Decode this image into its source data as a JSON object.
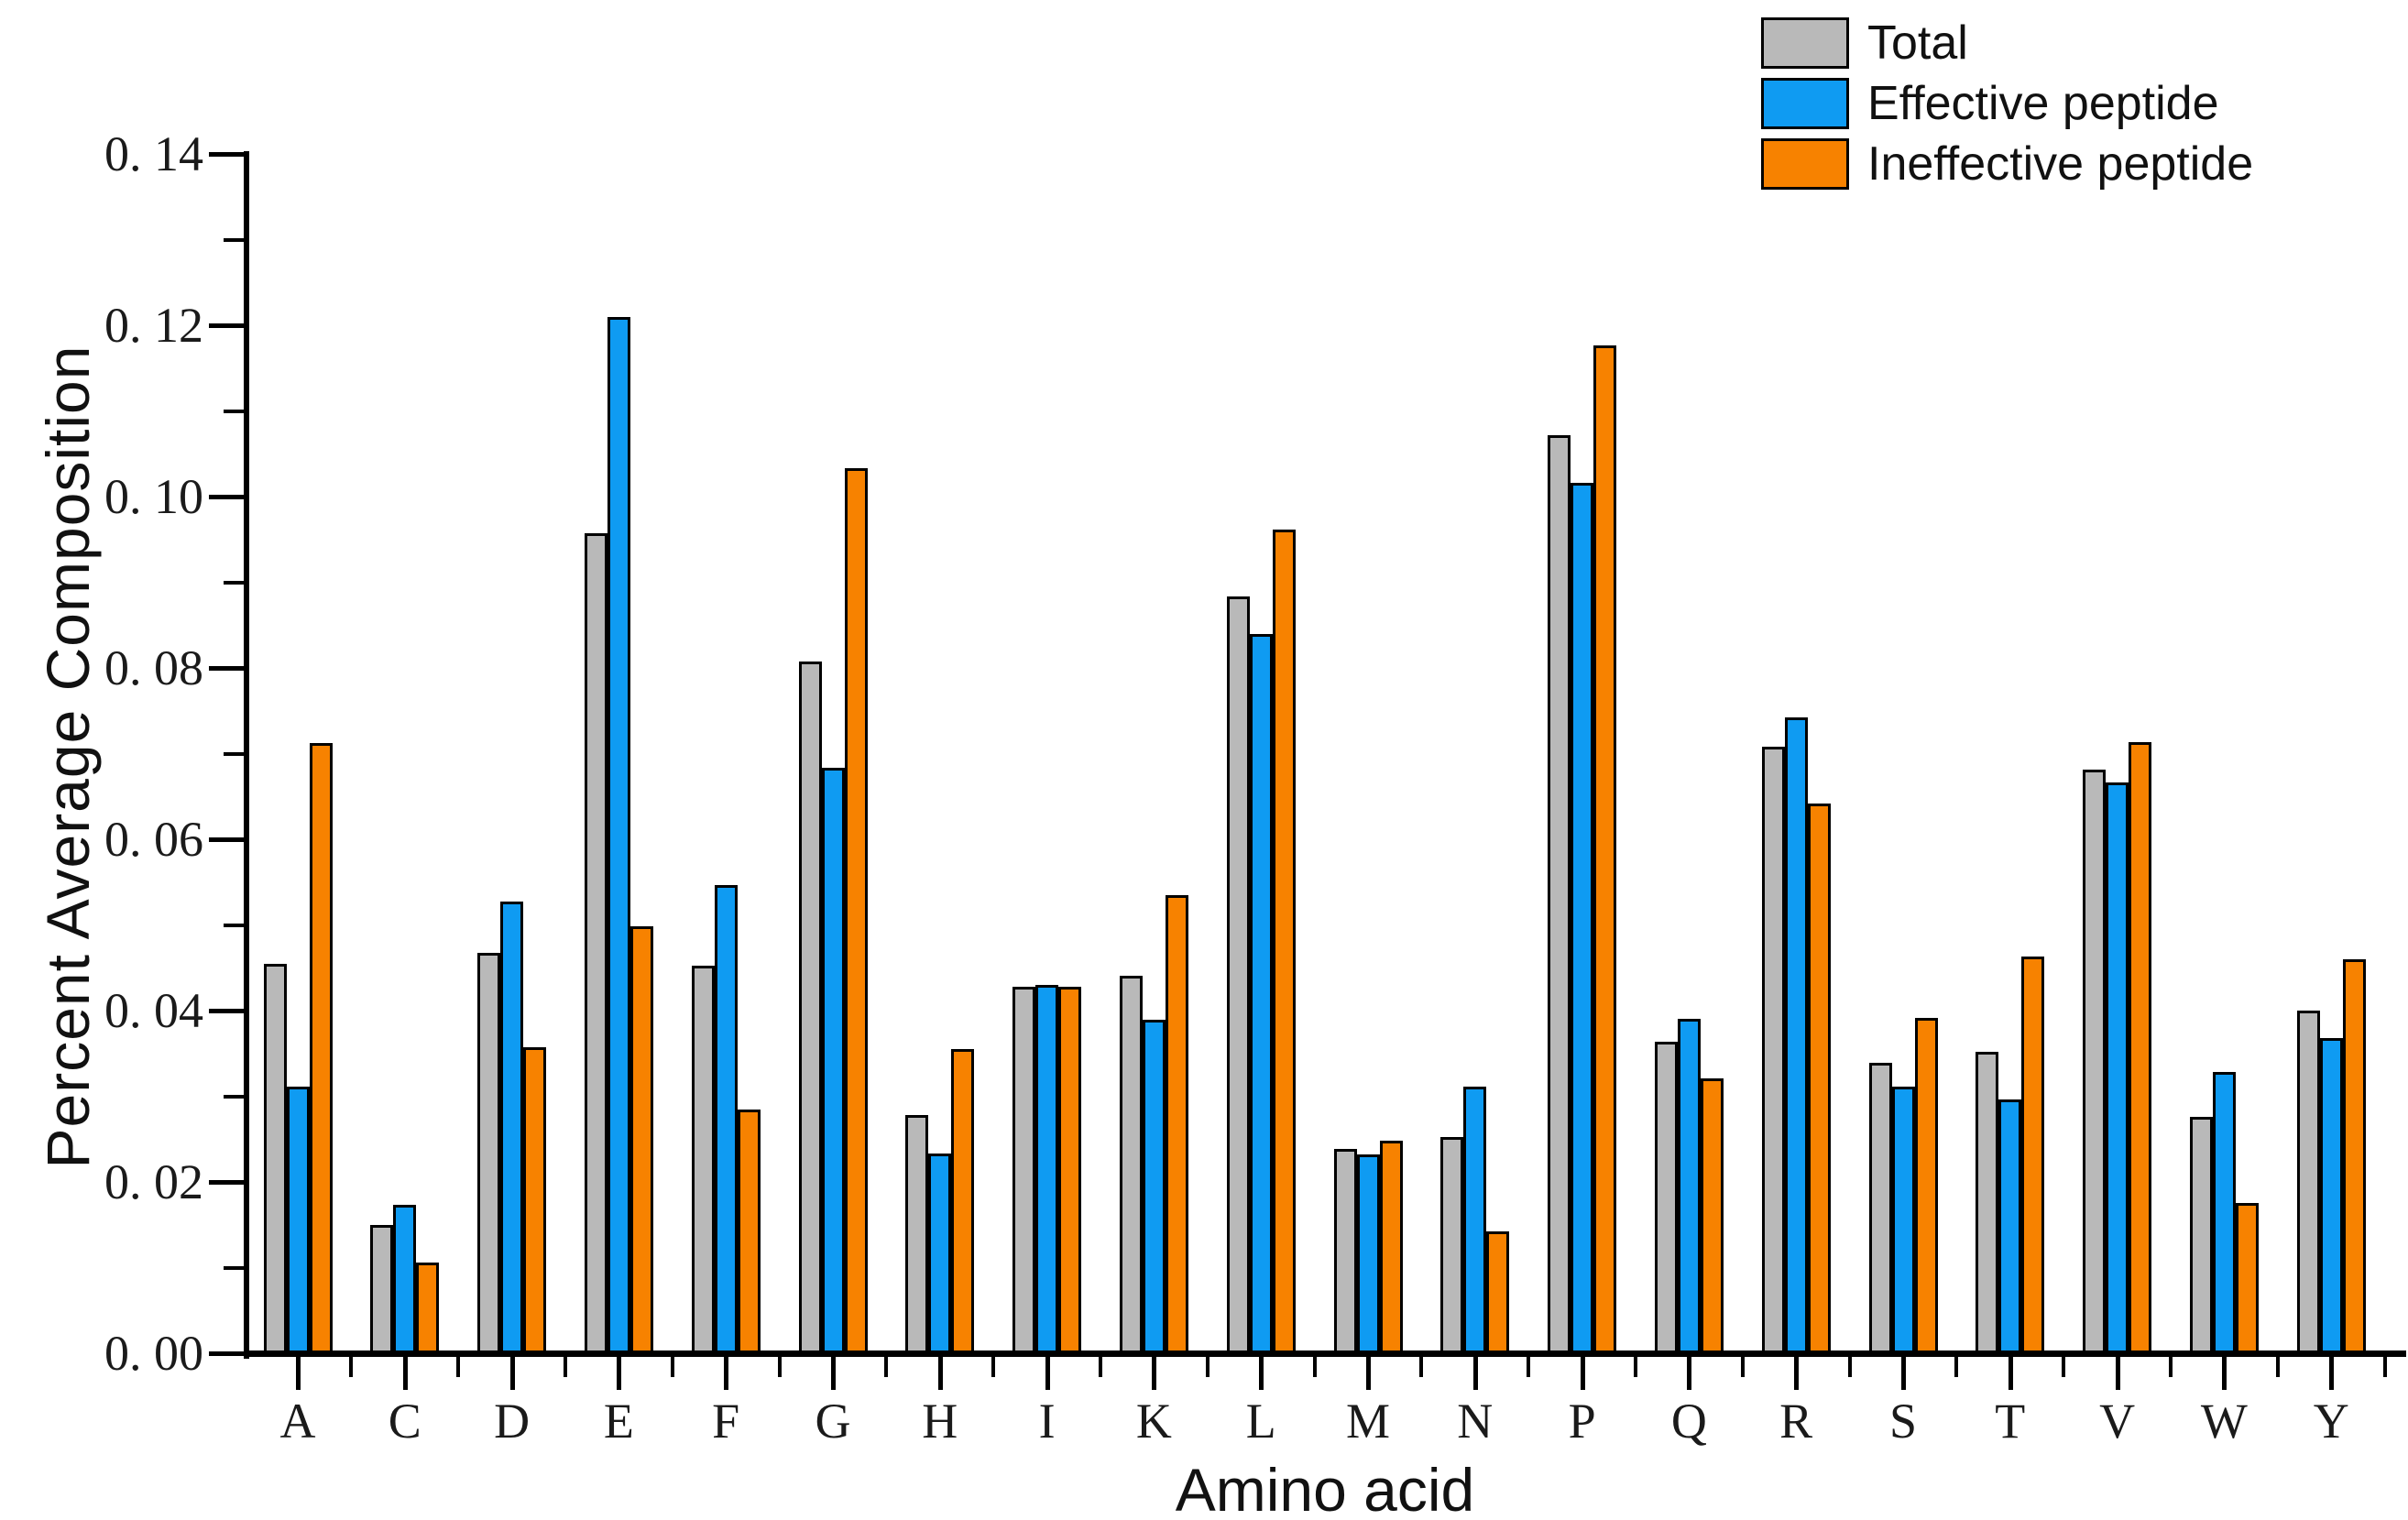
{
  "legend": {
    "items": [
      {
        "label": "Total",
        "color": "#b9b9b9"
      },
      {
        "label": "Effective peptide",
        "color": "#0f9bf2"
      },
      {
        "label": "Ineffective peptide",
        "color": "#f78200"
      }
    ]
  },
  "axes": {
    "y": {
      "title": "Percent Average Composition",
      "tick_labels": [
        "0. 00",
        "0. 02",
        "0. 04",
        "0. 06",
        "0. 08",
        "0. 10",
        "0. 12",
        "0. 14"
      ],
      "tick_values": [
        0.0,
        0.02,
        0.04,
        0.06,
        0.08,
        0.1,
        0.12,
        0.14
      ],
      "minor_step": 0.01
    },
    "x": {
      "title": "Amino acid"
    }
  },
  "chart_data": {
    "type": "bar",
    "title": "",
    "xlabel": "Amino acid",
    "ylabel": "Percent Average Composition",
    "ylim": [
      0,
      0.14
    ],
    "grid": false,
    "legend_position": "top-right",
    "categories": [
      "A",
      "C",
      "D",
      "E",
      "F",
      "G",
      "H",
      "I",
      "K",
      "L",
      "M",
      "N",
      "P",
      "Q",
      "R",
      "S",
      "T",
      "V",
      "W",
      "Y"
    ],
    "series": [
      {
        "name": "Total",
        "color": "#b9b9b9",
        "values": [
          0.0455,
          0.015,
          0.0467,
          0.0957,
          0.0452,
          0.0807,
          0.0278,
          0.0428,
          0.0441,
          0.0883,
          0.0238,
          0.0252,
          0.1072,
          0.0364,
          0.0708,
          0.0339,
          0.0352,
          0.0681,
          0.0276,
          0.04
        ]
      },
      {
        "name": "Effective peptide",
        "color": "#0f9bf2",
        "values": [
          0.0311,
          0.0173,
          0.0527,
          0.121,
          0.0547,
          0.0683,
          0.0233,
          0.043,
          0.0389,
          0.084,
          0.0232,
          0.0311,
          0.1016,
          0.039,
          0.0742,
          0.0311,
          0.0296,
          0.0666,
          0.0328,
          0.0368
        ]
      },
      {
        "name": "Ineffective peptide",
        "color": "#f78200",
        "values": [
          0.0712,
          0.0106,
          0.0357,
          0.0498,
          0.0284,
          0.1033,
          0.0355,
          0.0428,
          0.0535,
          0.0962,
          0.0248,
          0.0142,
          0.1177,
          0.0321,
          0.0642,
          0.0391,
          0.0463,
          0.0713,
          0.0175,
          0.046
        ]
      }
    ]
  }
}
